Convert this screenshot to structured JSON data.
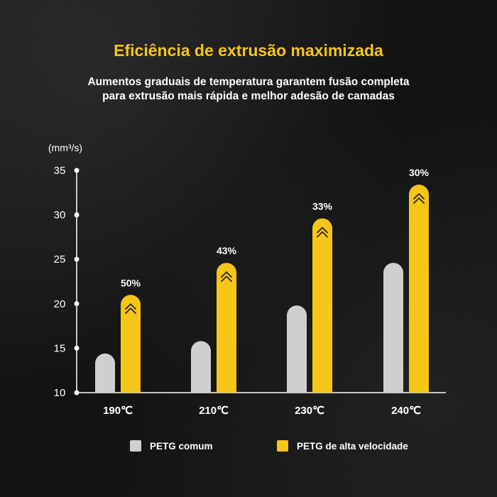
{
  "title": "Eficiência de extrusão maximizada",
  "subtitle_lines": [
    "Aumentos graduais de temperatura garantem fusão completa",
    "para extrusão mais rápida e melhor adesão de camadas"
  ],
  "colors": {
    "accent": "#f5c518",
    "regular_bar": "#cfcfcf",
    "high_speed_bar": "#f5c518",
    "axis": "#ffffff"
  },
  "legend": {
    "regular": "PETG comum",
    "high_speed": "PETG de alta velocidade"
  },
  "icons": {
    "increase": "double-chevron-up-icon"
  },
  "chart_data": {
    "type": "bar",
    "ylabel": "(mm³/s)",
    "ylim": [
      10,
      35
    ],
    "yticks": [
      10,
      15,
      20,
      25,
      30,
      35
    ],
    "grid": false,
    "legend_position": "bottom",
    "categories": [
      "190℃",
      "210℃",
      "230℃",
      "240℃"
    ],
    "series": [
      {
        "name": "PETG comum",
        "values": [
          14.4,
          15.8,
          19.8,
          24.6
        ]
      },
      {
        "name": "PETG de alta velocidade",
        "values": [
          21.0,
          24.6,
          29.6,
          33.4
        ]
      }
    ],
    "annotations": [
      "50%",
      "43%",
      "33%",
      "30%"
    ]
  }
}
